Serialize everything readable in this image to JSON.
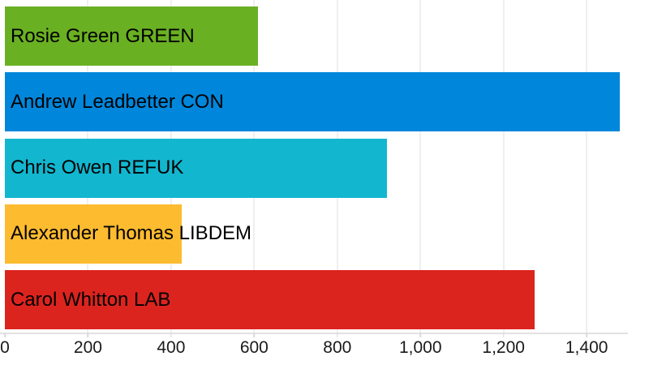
{
  "chart_data": {
    "type": "bar",
    "orientation": "horizontal",
    "title": "",
    "xlabel": "",
    "ylabel": "",
    "xlim": [
      0,
      1550
    ],
    "grid": true,
    "legend": false,
    "categories": [
      "Rosie Green GREEN",
      "Andrew Leadbetter CON",
      "Chris Owen REFUK",
      "Alexander Thomas LIBDEM",
      "Carol Whitton LAB"
    ],
    "values": [
      610,
      1480,
      920,
      425,
      1275
    ],
    "x_ticks": [
      0,
      200,
      400,
      600,
      800,
      1000,
      1200,
      1400
    ],
    "x_tick_labels": [
      "0",
      "200",
      "400",
      "600",
      "800",
      "1,000",
      "1,200",
      "1,400"
    ],
    "bars": [
      {
        "label": "Rosie Green GREEN",
        "candidate": "Rosie Green",
        "party": "GREEN",
        "value": 610,
        "color": "#6AB023"
      },
      {
        "label": "Andrew Leadbetter CON",
        "candidate": "Andrew Leadbetter",
        "party": "CON",
        "value": 1480,
        "color": "#0087DC"
      },
      {
        "label": "Chris Owen REFUK",
        "candidate": "Chris Owen",
        "party": "REFUK",
        "value": 920,
        "color": "#12B6CF"
      },
      {
        "label": "Alexander Thomas LIBDEM",
        "candidate": "Alexander Thomas",
        "party": "LIBDEM",
        "value": 425,
        "color": "#FDBB30"
      },
      {
        "label": "Carol Whitton LAB",
        "candidate": "Carol Whitton",
        "party": "LAB",
        "value": 1275,
        "color": "#DC241F"
      }
    ]
  },
  "styles": {
    "background": "#ffffff",
    "bar_label_color": "#000000",
    "tick_label_color": "#1a1a1a",
    "grid_color": "#efefef",
    "axis_line_color": "#e2e2e2",
    "tick_mark_color": "#d9d9d9"
  }
}
